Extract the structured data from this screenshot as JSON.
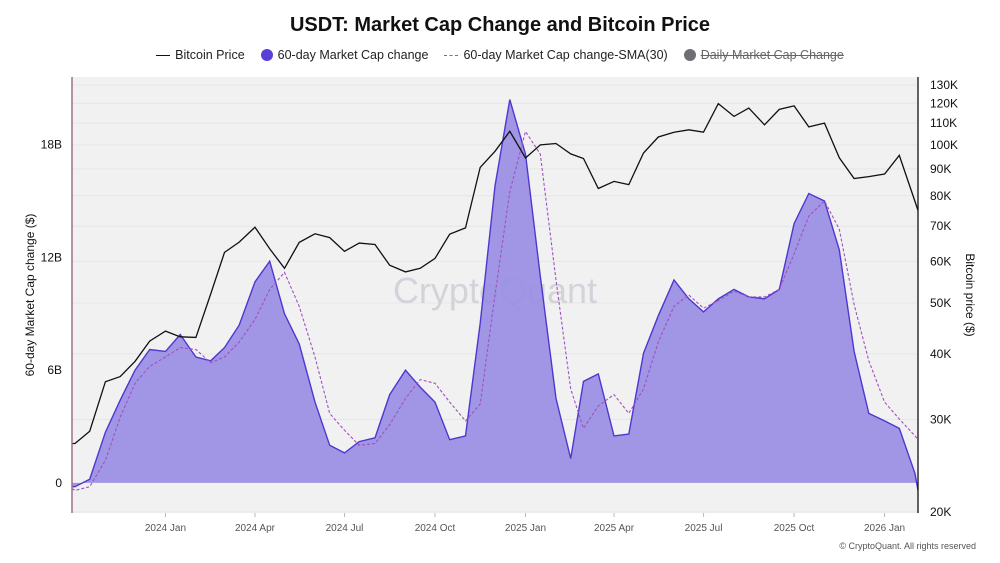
{
  "title": "USDT: Market Cap Change and Bitcoin Price",
  "legend": [
    {
      "label": "Bitcoin Price",
      "type": "line",
      "color": "#111111",
      "active": true
    },
    {
      "label": "60-day Market Cap change",
      "type": "dot",
      "color": "#5b3fd9",
      "active": true
    },
    {
      "label": "60-day Market Cap change-SMA(30)",
      "type": "dash",
      "color": "#a050c0",
      "active": true
    },
    {
      "label": "Daily Market Cap Change",
      "type": "dot",
      "color": "#6e6e74",
      "active": false
    }
  ],
  "watermark": "CryptoQuant",
  "copyright": "© CryptoQuant. All rights reserved",
  "chart_data": {
    "type": "area+line",
    "title": "USDT: Market Cap Change and Bitcoin Price",
    "ylabel_left": "60-day Market Cap change ($)",
    "ylabel_right": "Bitcoin price ($)",
    "xlim": [
      "2023-09-28",
      "2026-02-04"
    ],
    "ylim_left": [
      -1.6,
      21.6
    ],
    "ylim_right": [
      20000,
      130000
    ],
    "right_scale": "log",
    "grid": true,
    "legend_position": "top",
    "x_ticks": [
      {
        "date": "2024-01-01",
        "label": "2024 Jan"
      },
      {
        "date": "2024-04-01",
        "label": "2024 Apr"
      },
      {
        "date": "2024-07-01",
        "label": "2024 Jul"
      },
      {
        "date": "2024-10-01",
        "label": "2024 Oct"
      },
      {
        "date": "2025-01-01",
        "label": "2025 Jan"
      },
      {
        "date": "2025-04-01",
        "label": "2025 Apr"
      },
      {
        "date": "2025-07-01",
        "label": "2025 Jul"
      },
      {
        "date": "2025-10-01",
        "label": "2025 Oct"
      },
      {
        "date": "2026-01-01",
        "label": "2026 Jan"
      }
    ],
    "y_left_ticks": [
      {
        "value": 0,
        "label": "0"
      },
      {
        "value": 6,
        "label": "6B"
      },
      {
        "value": 12,
        "label": "12B"
      },
      {
        "value": 18,
        "label": "18B"
      }
    ],
    "y_right_ticks": [
      {
        "value": 20000,
        "label": "20K"
      },
      {
        "value": 30000,
        "label": "30K"
      },
      {
        "value": 40000,
        "label": "40K"
      },
      {
        "value": 50000,
        "label": "50K"
      },
      {
        "value": 60000,
        "label": "60K"
      },
      {
        "value": 70000,
        "label": "70K"
      },
      {
        "value": 80000,
        "label": "80K"
      },
      {
        "value": 90000,
        "label": "90K"
      },
      {
        "value": 100000,
        "label": "100K"
      },
      {
        "value": 110000,
        "label": "110K"
      },
      {
        "value": 120000,
        "label": "120K"
      },
      {
        "value": 130000,
        "label": "130K"
      }
    ],
    "x": [
      "2023-09-28",
      "2023-10-01",
      "2023-10-16",
      "2023-11-01",
      "2023-11-16",
      "2023-12-01",
      "2023-12-16",
      "2024-01-01",
      "2024-01-16",
      "2024-02-01",
      "2024-02-16",
      "2024-03-01",
      "2024-03-16",
      "2024-04-01",
      "2024-04-16",
      "2024-05-01",
      "2024-05-16",
      "2024-06-01",
      "2024-06-16",
      "2024-07-01",
      "2024-07-16",
      "2024-08-01",
      "2024-08-16",
      "2024-09-01",
      "2024-09-16",
      "2024-10-01",
      "2024-10-16",
      "2024-11-01",
      "2024-11-16",
      "2024-12-01",
      "2024-12-16",
      "2025-01-01",
      "2025-01-16",
      "2025-02-01",
      "2025-02-16",
      "2025-03-01",
      "2025-03-16",
      "2025-04-01",
      "2025-04-16",
      "2025-05-01",
      "2025-05-16",
      "2025-06-01",
      "2025-06-16",
      "2025-07-01",
      "2025-07-16",
      "2025-08-01",
      "2025-08-16",
      "2025-09-01",
      "2025-09-16",
      "2025-10-01",
      "2025-10-16",
      "2025-11-01",
      "2025-11-16",
      "2025-12-01",
      "2025-12-16",
      "2026-01-01",
      "2026-01-16",
      "2026-02-01",
      "2026-02-04"
    ],
    "series": [
      {
        "name": "60-day Market Cap change",
        "axis": "left",
        "unit": "B",
        "values": [
          -0.2,
          -0.2,
          0.2,
          2.7,
          4.4,
          6.0,
          7.1,
          7.0,
          7.9,
          6.7,
          6.5,
          7.2,
          8.4,
          10.7,
          11.8,
          9.0,
          7.4,
          4.3,
          2.0,
          1.6,
          2.2,
          2.4,
          4.7,
          6.0,
          5.1,
          4.3,
          2.3,
          2.5,
          8.5,
          15.8,
          20.4,
          17.5,
          11.0,
          4.5,
          1.3,
          5.4,
          5.8,
          2.5,
          2.6,
          6.9,
          8.9,
          10.8,
          9.8,
          9.1,
          9.8,
          10.3,
          9.9,
          9.8,
          10.3,
          13.8,
          15.4,
          15.0,
          12.4,
          7.0,
          3.7,
          3.3,
          2.9,
          0.5,
          -0.4
        ]
      },
      {
        "name": "60-day Market Cap change-SMA(30)",
        "axis": "left",
        "unit": "B",
        "values": [
          -0.3,
          -0.4,
          -0.2,
          1.2,
          3.5,
          5.3,
          6.2,
          6.7,
          7.2,
          7.1,
          6.4,
          6.7,
          7.5,
          8.7,
          10.3,
          11.2,
          9.4,
          6.7,
          3.7,
          2.8,
          2.0,
          2.1,
          3.1,
          4.5,
          5.5,
          5.3,
          4.3,
          3.3,
          4.2,
          10.0,
          15.5,
          18.7,
          17.5,
          10.8,
          5.0,
          2.9,
          4.1,
          4.7,
          3.7,
          5.0,
          7.5,
          9.4,
          10.0,
          9.3,
          9.7,
          10.2,
          9.9,
          9.9,
          10.3,
          12.2,
          14.2,
          15.0,
          13.5,
          9.5,
          6.5,
          4.3,
          3.4,
          2.5,
          2.3
        ]
      },
      {
        "name": "Bitcoin Price",
        "axis": "right",
        "unit": "$",
        "values": [
          27000,
          27000,
          28500,
          35400,
          36200,
          38700,
          42300,
          44200,
          43100,
          43000,
          52000,
          62400,
          65300,
          69700,
          63400,
          58200,
          65200,
          67700,
          66600,
          62700,
          65000,
          64600,
          59000,
          57300,
          58200,
          60800,
          67600,
          69500,
          90600,
          97200,
          106100,
          94400,
          100000,
          100600,
          96100,
          94200,
          82600,
          85200,
          84000,
          96500,
          103500,
          105700,
          106800,
          105700,
          119800,
          113300,
          117500,
          109200,
          116800,
          118600,
          108200,
          110000,
          94500,
          86300,
          87000,
          88000,
          95500,
          78000,
          75000
        ]
      }
    ]
  }
}
